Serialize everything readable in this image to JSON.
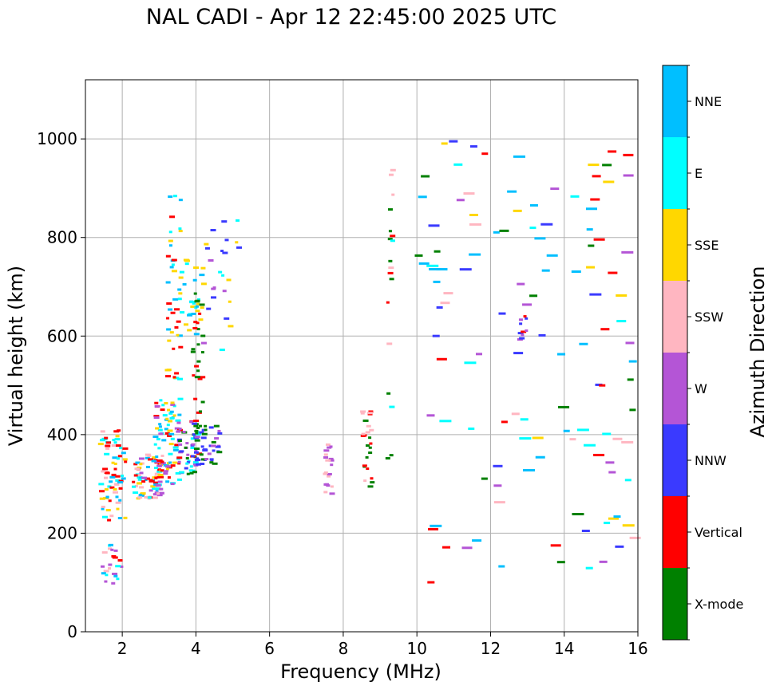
{
  "chart_data": {
    "type": "scatter",
    "title": "NAL CADI - Apr 12 22:45:00 2025 UTC",
    "xlabel": "Frequency (MHz)",
    "ylabel": "Virtual height (km)",
    "xlim": [
      1.0,
      16.0
    ],
    "ylim": [
      0,
      1120
    ],
    "xticks": [
      2,
      4,
      6,
      8,
      10,
      12,
      14,
      16
    ],
    "yticks": [
      0,
      200,
      400,
      600,
      800,
      1000
    ],
    "grid": true,
    "colorbar": {
      "label": "Azimuth Direction",
      "categories": [
        {
          "name": "X-mode",
          "color": "#008000"
        },
        {
          "name": "Vertical",
          "color": "#ff0000"
        },
        {
          "name": "NNW",
          "color": "#3a3aff"
        },
        {
          "name": "W",
          "color": "#b455d6"
        },
        {
          "name": "SSW",
          "color": "#ffb6c1"
        },
        {
          "name": "SSE",
          "color": "#ffd700"
        },
        {
          "name": "E",
          "color": "#00ffff"
        },
        {
          "name": "NNE",
          "color": "#00bfff"
        }
      ]
    },
    "clusters": [
      {
        "x": [
          1.4,
          2.0
        ],
        "y": [
          90,
          180
        ],
        "count": 22,
        "colors": [
          "Vertical",
          "NNE",
          "E",
          "W",
          "SSW"
        ]
      },
      {
        "x": [
          1.4,
          2.1
        ],
        "y": [
          225,
          410
        ],
        "count": 70,
        "colors": [
          "NNE",
          "E",
          "SSE",
          "Vertical",
          "SSW"
        ]
      },
      {
        "x": [
          2.3,
          3.1
        ],
        "y": [
          270,
          360
        ],
        "count": 80,
        "colors": [
          "NNE",
          "E",
          "Vertical",
          "W",
          "SSE",
          "SSW"
        ]
      },
      {
        "x": [
          2.9,
          3.6
        ],
        "y": [
          290,
          480
        ],
        "count": 85,
        "colors": [
          "Vertical",
          "W",
          "E",
          "SSE",
          "NNE"
        ]
      },
      {
        "x": [
          3.2,
          3.6
        ],
        "y": [
          480,
          900
        ],
        "count": 40,
        "colors": [
          "Vertical",
          "SSE",
          "E",
          "NNE"
        ]
      },
      {
        "x": [
          3.5,
          4.1
        ],
        "y": [
          320,
          430
        ],
        "count": 50,
        "colors": [
          "W",
          "Vertical",
          "NNW",
          "X-mode",
          "E"
        ]
      },
      {
        "x": [
          3.5,
          4.2
        ],
        "y": [
          600,
          770
        ],
        "count": 30,
        "colors": [
          "E",
          "NNE",
          "SSE"
        ]
      },
      {
        "x": [
          3.9,
          4.7
        ],
        "y": [
          340,
          420
        ],
        "count": 45,
        "colors": [
          "NNW",
          "W",
          "X-mode"
        ]
      },
      {
        "x": [
          3.9,
          4.2
        ],
        "y": [
          440,
          700
        ],
        "count": 25,
        "colors": [
          "X-mode",
          "Vertical"
        ]
      },
      {
        "x": [
          4.2,
          5.2
        ],
        "y": [
          560,
          850
        ],
        "count": 25,
        "colors": [
          "E",
          "SSE",
          "W",
          "NNW"
        ]
      },
      {
        "x": [
          7.5,
          7.7
        ],
        "y": [
          270,
          380
        ],
        "count": 20,
        "colors": [
          "W",
          "SSW"
        ]
      },
      {
        "x": [
          8.5,
          8.8
        ],
        "y": [
          290,
          470
        ],
        "count": 25,
        "colors": [
          "Vertical",
          "SSW",
          "X-mode"
        ]
      },
      {
        "x": [
          9.2,
          9.4
        ],
        "y": [
          350,
          940
        ],
        "count": 18,
        "colors": [
          "X-mode",
          "E",
          "SSW",
          "Vertical"
        ]
      },
      {
        "x": [
          12.8,
          13.0
        ],
        "y": [
          590,
          640
        ],
        "count": 10,
        "colors": [
          "Vertical",
          "NNW",
          "W"
        ]
      },
      {
        "x": [
          10.0,
          16.0
        ],
        "y": [
          90,
          1010
        ],
        "count": 120,
        "colors": [
          "SSE",
          "SSW",
          "W",
          "NNW",
          "E",
          "Vertical",
          "X-mode",
          "NNE"
        ]
      }
    ]
  }
}
